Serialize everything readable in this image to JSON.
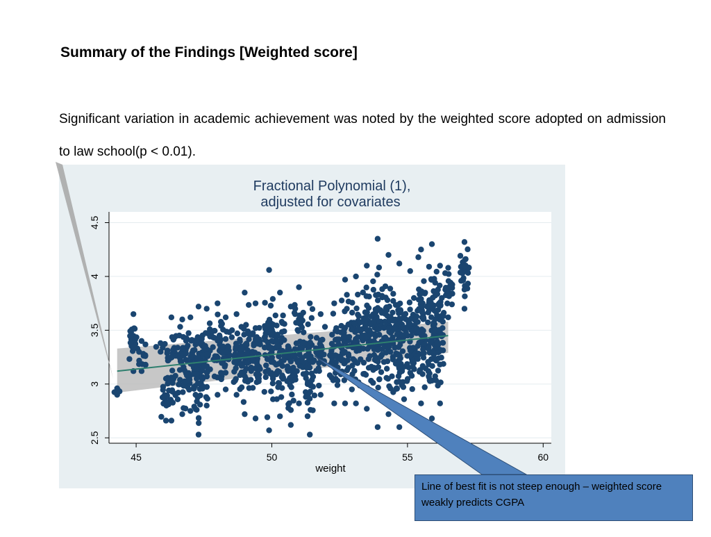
{
  "slide": {
    "title": "Summary of the Findings  [Weighted score]",
    "body": "Significant variation in academic achievement was noted by the weighted score adopted on admission to law school(p < 0.01)."
  },
  "callout": {
    "text": "Line of best fit is not steep enough – weighted score weakly predicts  CGPA"
  },
  "colors": {
    "panel_bg": "#e8eff2",
    "plot_bg": "#ffffff",
    "points": "#1a4570",
    "fit_line": "#2e7f6e",
    "ci_band": "#bdbdbd",
    "title_color": "#1e3a5f",
    "callout_fill": "#4f81bd"
  },
  "chart_data": {
    "type": "scatter",
    "title": "Fractional Polynomial (1),",
    "subtitle": "adjusted for covariates",
    "xlabel": "weight",
    "ylabel": "",
    "xlim": [
      44,
      60.3
    ],
    "ylim": [
      2.45,
      4.6
    ],
    "xticks": [
      "45",
      "50",
      "55",
      "60"
    ],
    "yticks": [
      "2.5",
      "3",
      "3.5",
      "4",
      "4.5"
    ],
    "grid": true,
    "legend": "none",
    "fit_line": {
      "x": [
        44.3,
        56.5
      ],
      "y": [
        3.12,
        3.45
      ]
    },
    "ci_band": {
      "x": [
        44.3,
        56.5
      ],
      "upper": [
        3.33,
        3.58
      ],
      "lower": [
        2.92,
        3.29
      ]
    },
    "point_columns": [
      {
        "x": 44.3,
        "y_min": 2.9,
        "y_max": 2.96
      },
      {
        "x": 44.9,
        "y_min": 3.12,
        "y_max": 3.65
      },
      {
        "x": 45.2,
        "y_min": 3.12,
        "y_max": 3.4
      },
      {
        "x": 45.9,
        "y_min": 3.3,
        "y_max": 3.38
      },
      {
        "x": 46.1,
        "y_min": 2.66,
        "y_max": 3.05
      },
      {
        "x": 46.3,
        "y_min": 2.66,
        "y_max": 3.62
      },
      {
        "x": 46.7,
        "y_min": 2.72,
        "y_max": 3.6
      },
      {
        "x": 47.0,
        "y_min": 2.75,
        "y_max": 3.62
      },
      {
        "x": 47.3,
        "y_min": 2.53,
        "y_max": 3.72
      },
      {
        "x": 47.6,
        "y_min": 2.8,
        "y_max": 3.7
      },
      {
        "x": 48.0,
        "y_min": 2.9,
        "y_max": 3.75
      },
      {
        "x": 48.3,
        "y_min": 2.95,
        "y_max": 3.62
      },
      {
        "x": 48.7,
        "y_min": 2.9,
        "y_max": 3.65
      },
      {
        "x": 49.0,
        "y_min": 2.72,
        "y_max": 3.85
      },
      {
        "x": 49.4,
        "y_min": 2.68,
        "y_max": 3.75
      },
      {
        "x": 49.9,
        "y_min": 2.57,
        "y_max": 4.06
      },
      {
        "x": 50.3,
        "y_min": 2.7,
        "y_max": 3.85
      },
      {
        "x": 50.7,
        "y_min": 2.62,
        "y_max": 3.72
      },
      {
        "x": 51.0,
        "y_min": 2.82,
        "y_max": 3.9
      },
      {
        "x": 51.4,
        "y_min": 2.53,
        "y_max": 3.75
      },
      {
        "x": 51.8,
        "y_min": 2.9,
        "y_max": 3.65
      },
      {
        "x": 52.3,
        "y_min": 2.82,
        "y_max": 3.75
      },
      {
        "x": 52.7,
        "y_min": 2.82,
        "y_max": 3.97
      },
      {
        "x": 53.1,
        "y_min": 2.82,
        "y_max": 4.0
      },
      {
        "x": 53.5,
        "y_min": 2.77,
        "y_max": 4.1
      },
      {
        "x": 53.9,
        "y_min": 2.6,
        "y_max": 4.35
      },
      {
        "x": 54.3,
        "y_min": 2.72,
        "y_max": 4.2
      },
      {
        "x": 54.7,
        "y_min": 2.6,
        "y_max": 4.12
      },
      {
        "x": 55.1,
        "y_min": 2.72,
        "y_max": 4.05
      },
      {
        "x": 55.5,
        "y_min": 2.82,
        "y_max": 4.25
      },
      {
        "x": 55.9,
        "y_min": 2.68,
        "y_max": 4.3
      },
      {
        "x": 56.2,
        "y_min": 2.82,
        "y_max": 4.1
      },
      {
        "x": 56.5,
        "y_min": 3.62,
        "y_max": 4.08
      },
      {
        "x": 57.1,
        "y_min": 3.7,
        "y_max": 4.32
      }
    ]
  }
}
